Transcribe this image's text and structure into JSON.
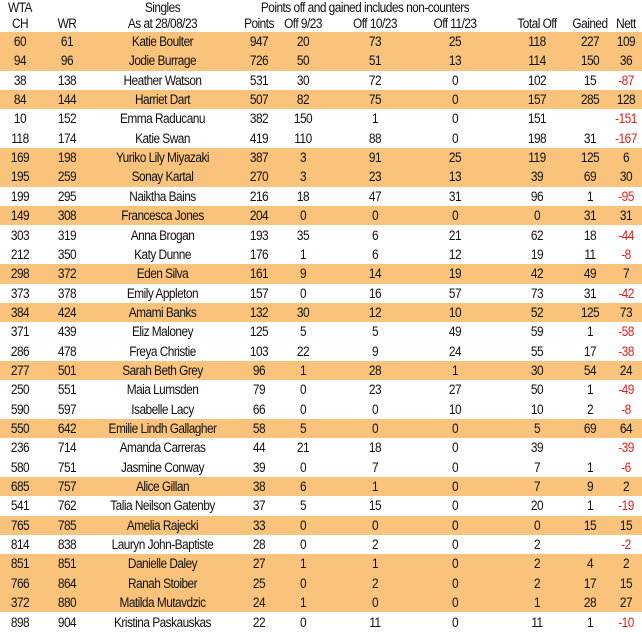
{
  "header": {
    "line1": {
      "ch": "WTA",
      "name": "Singles",
      "note": "Points off and gained includes non-counters"
    },
    "line2": {
      "ch": "CH",
      "wr": "WR",
      "name": "As at 28/08/23",
      "points": "Points",
      "off9": "Off 9/23",
      "off10": "Off 10/23",
      "off11": "Off 11/23",
      "total": "Total Off",
      "gained": "Gained",
      "nett": "Nett"
    }
  },
  "highlight_color": "#f9c37c",
  "negative_color": "#e0201c",
  "columns": [
    "ch",
    "wr",
    "name",
    "points",
    "off9",
    "off10",
    "off11",
    "total",
    "gained",
    "nett"
  ],
  "rows": [
    {
      "ch": "60",
      "wr": "61",
      "name": "Katie Boulter",
      "points": "947",
      "off9": "20",
      "off10": "73",
      "off11": "25",
      "total": "118",
      "gained": "227",
      "nett": "109",
      "highlight": true
    },
    {
      "ch": "94",
      "wr": "96",
      "name": "Jodie Burrage",
      "points": "726",
      "off9": "50",
      "off10": "51",
      "off11": "13",
      "total": "114",
      "gained": "150",
      "nett": "36",
      "highlight": true
    },
    {
      "ch": "38",
      "wr": "138",
      "name": "Heather Watson",
      "points": "531",
      "off9": "30",
      "off10": "72",
      "off11": "0",
      "total": "102",
      "gained": "15",
      "nett": "-87",
      "highlight": false
    },
    {
      "ch": "84",
      "wr": "144",
      "name": "Harriet Dart",
      "points": "507",
      "off9": "82",
      "off10": "75",
      "off11": "0",
      "total": "157",
      "gained": "285",
      "nett": "128",
      "highlight": true
    },
    {
      "ch": "10",
      "wr": "152",
      "name": "Emma Raducanu",
      "points": "382",
      "off9": "150",
      "off10": "1",
      "off11": "0",
      "total": "151",
      "gained": "",
      "nett": "-151",
      "highlight": false
    },
    {
      "ch": "118",
      "wr": "174",
      "name": "Katie Swan",
      "points": "419",
      "off9": "110",
      "off10": "88",
      "off11": "0",
      "total": "198",
      "gained": "31",
      "nett": "-167",
      "highlight": false
    },
    {
      "ch": "169",
      "wr": "198",
      "name": "Yuriko Lily Miyazaki",
      "points": "387",
      "off9": "3",
      "off10": "91",
      "off11": "25",
      "total": "119",
      "gained": "125",
      "nett": "6",
      "highlight": true
    },
    {
      "ch": "195",
      "wr": "259",
      "name": "Sonay Kartal",
      "points": "270",
      "off9": "3",
      "off10": "23",
      "off11": "13",
      "total": "39",
      "gained": "69",
      "nett": "30",
      "highlight": true
    },
    {
      "ch": "199",
      "wr": "295",
      "name": "Naiktha Bains",
      "points": "216",
      "off9": "18",
      "off10": "47",
      "off11": "31",
      "total": "96",
      "gained": "1",
      "nett": "-95",
      "highlight": false
    },
    {
      "ch": "149",
      "wr": "308",
      "name": "Francesca Jones",
      "points": "204",
      "off9": "0",
      "off10": "0",
      "off11": "0",
      "total": "0",
      "gained": "31",
      "nett": "31",
      "highlight": true
    },
    {
      "ch": "303",
      "wr": "319",
      "name": "Anna Brogan",
      "points": "193",
      "off9": "35",
      "off10": "6",
      "off11": "21",
      "total": "62",
      "gained": "18",
      "nett": "-44",
      "highlight": false
    },
    {
      "ch": "212",
      "wr": "350",
      "name": "Katy Dunne",
      "points": "176",
      "off9": "1",
      "off10": "6",
      "off11": "12",
      "total": "19",
      "gained": "11",
      "nett": "-8",
      "highlight": false
    },
    {
      "ch": "298",
      "wr": "372",
      "name": "Eden Silva",
      "points": "161",
      "off9": "9",
      "off10": "14",
      "off11": "19",
      "total": "42",
      "gained": "49",
      "nett": "7",
      "highlight": true
    },
    {
      "ch": "373",
      "wr": "378",
      "name": "Emily Appleton",
      "points": "157",
      "off9": "0",
      "off10": "16",
      "off11": "57",
      "total": "73",
      "gained": "31",
      "nett": "-42",
      "highlight": false
    },
    {
      "ch": "384",
      "wr": "424",
      "name": "Amami Banks",
      "points": "132",
      "off9": "30",
      "off10": "12",
      "off11": "10",
      "total": "52",
      "gained": "125",
      "nett": "73",
      "highlight": true
    },
    {
      "ch": "371",
      "wr": "439",
      "name": "Eliz Maloney",
      "points": "125",
      "off9": "5",
      "off10": "5",
      "off11": "49",
      "total": "59",
      "gained": "1",
      "nett": "-58",
      "highlight": false
    },
    {
      "ch": "286",
      "wr": "478",
      "name": "Freya Christie",
      "points": "103",
      "off9": "22",
      "off10": "9",
      "off11": "24",
      "total": "55",
      "gained": "17",
      "nett": "-38",
      "highlight": false
    },
    {
      "ch": "277",
      "wr": "501",
      "name": "Sarah Beth Grey",
      "points": "96",
      "off9": "1",
      "off10": "28",
      "off11": "1",
      "total": "30",
      "gained": "54",
      "nett": "24",
      "highlight": true
    },
    {
      "ch": "250",
      "wr": "551",
      "name": "Maia Lumsden",
      "points": "79",
      "off9": "0",
      "off10": "23",
      "off11": "27",
      "total": "50",
      "gained": "1",
      "nett": "-49",
      "highlight": false
    },
    {
      "ch": "590",
      "wr": "597",
      "name": "Isabelle Lacy",
      "points": "66",
      "off9": "0",
      "off10": "0",
      "off11": "10",
      "total": "10",
      "gained": "2",
      "nett": "-8",
      "highlight": false
    },
    {
      "ch": "550",
      "wr": "642",
      "name": "Emilie Lindh Gallagher",
      "points": "58",
      "off9": "5",
      "off10": "0",
      "off11": "0",
      "total": "5",
      "gained": "69",
      "nett": "64",
      "highlight": true
    },
    {
      "ch": "236",
      "wr": "714",
      "name": "Amanda Carreras",
      "points": "44",
      "off9": "21",
      "off10": "18",
      "off11": "0",
      "total": "39",
      "gained": "",
      "nett": "-39",
      "highlight": false
    },
    {
      "ch": "580",
      "wr": "751",
      "name": "Jasmine Conway",
      "points": "39",
      "off9": "0",
      "off10": "7",
      "off11": "0",
      "total": "7",
      "gained": "1",
      "nett": "-6",
      "highlight": false
    },
    {
      "ch": "685",
      "wr": "757",
      "name": "Alice Gillan",
      "points": "38",
      "off9": "6",
      "off10": "1",
      "off11": "0",
      "total": "7",
      "gained": "9",
      "nett": "2",
      "highlight": true
    },
    {
      "ch": "541",
      "wr": "762",
      "name": "Talia Neilson Gatenby",
      "points": "37",
      "off9": "5",
      "off10": "15",
      "off11": "0",
      "total": "20",
      "gained": "1",
      "nett": "-19",
      "highlight": false
    },
    {
      "ch": "765",
      "wr": "785",
      "name": "Amelia Rajecki",
      "points": "33",
      "off9": "0",
      "off10": "0",
      "off11": "0",
      "total": "0",
      "gained": "15",
      "nett": "15",
      "highlight": true
    },
    {
      "ch": "814",
      "wr": "838",
      "name": "Lauryn John-Baptiste",
      "points": "28",
      "off9": "0",
      "off10": "2",
      "off11": "0",
      "total": "2",
      "gained": "",
      "nett": "-2",
      "highlight": false
    },
    {
      "ch": "851",
      "wr": "851",
      "name": "Danielle Daley",
      "points": "27",
      "off9": "1",
      "off10": "1",
      "off11": "0",
      "total": "2",
      "gained": "4",
      "nett": "2",
      "highlight": true
    },
    {
      "ch": "766",
      "wr": "864",
      "name": "Ranah Stoiber",
      "points": "25",
      "off9": "0",
      "off10": "2",
      "off11": "0",
      "total": "2",
      "gained": "17",
      "nett": "15",
      "highlight": true
    },
    {
      "ch": "372",
      "wr": "880",
      "name": "Matilda Mutavdzic",
      "points": "24",
      "off9": "1",
      "off10": "0",
      "off11": "0",
      "total": "1",
      "gained": "28",
      "nett": "27",
      "highlight": true
    },
    {
      "ch": "898",
      "wr": "904",
      "name": "Kristina Paskauskas",
      "points": "22",
      "off9": "0",
      "off10": "11",
      "off11": "0",
      "total": "11",
      "gained": "1",
      "nett": "-10",
      "highlight": false
    }
  ]
}
